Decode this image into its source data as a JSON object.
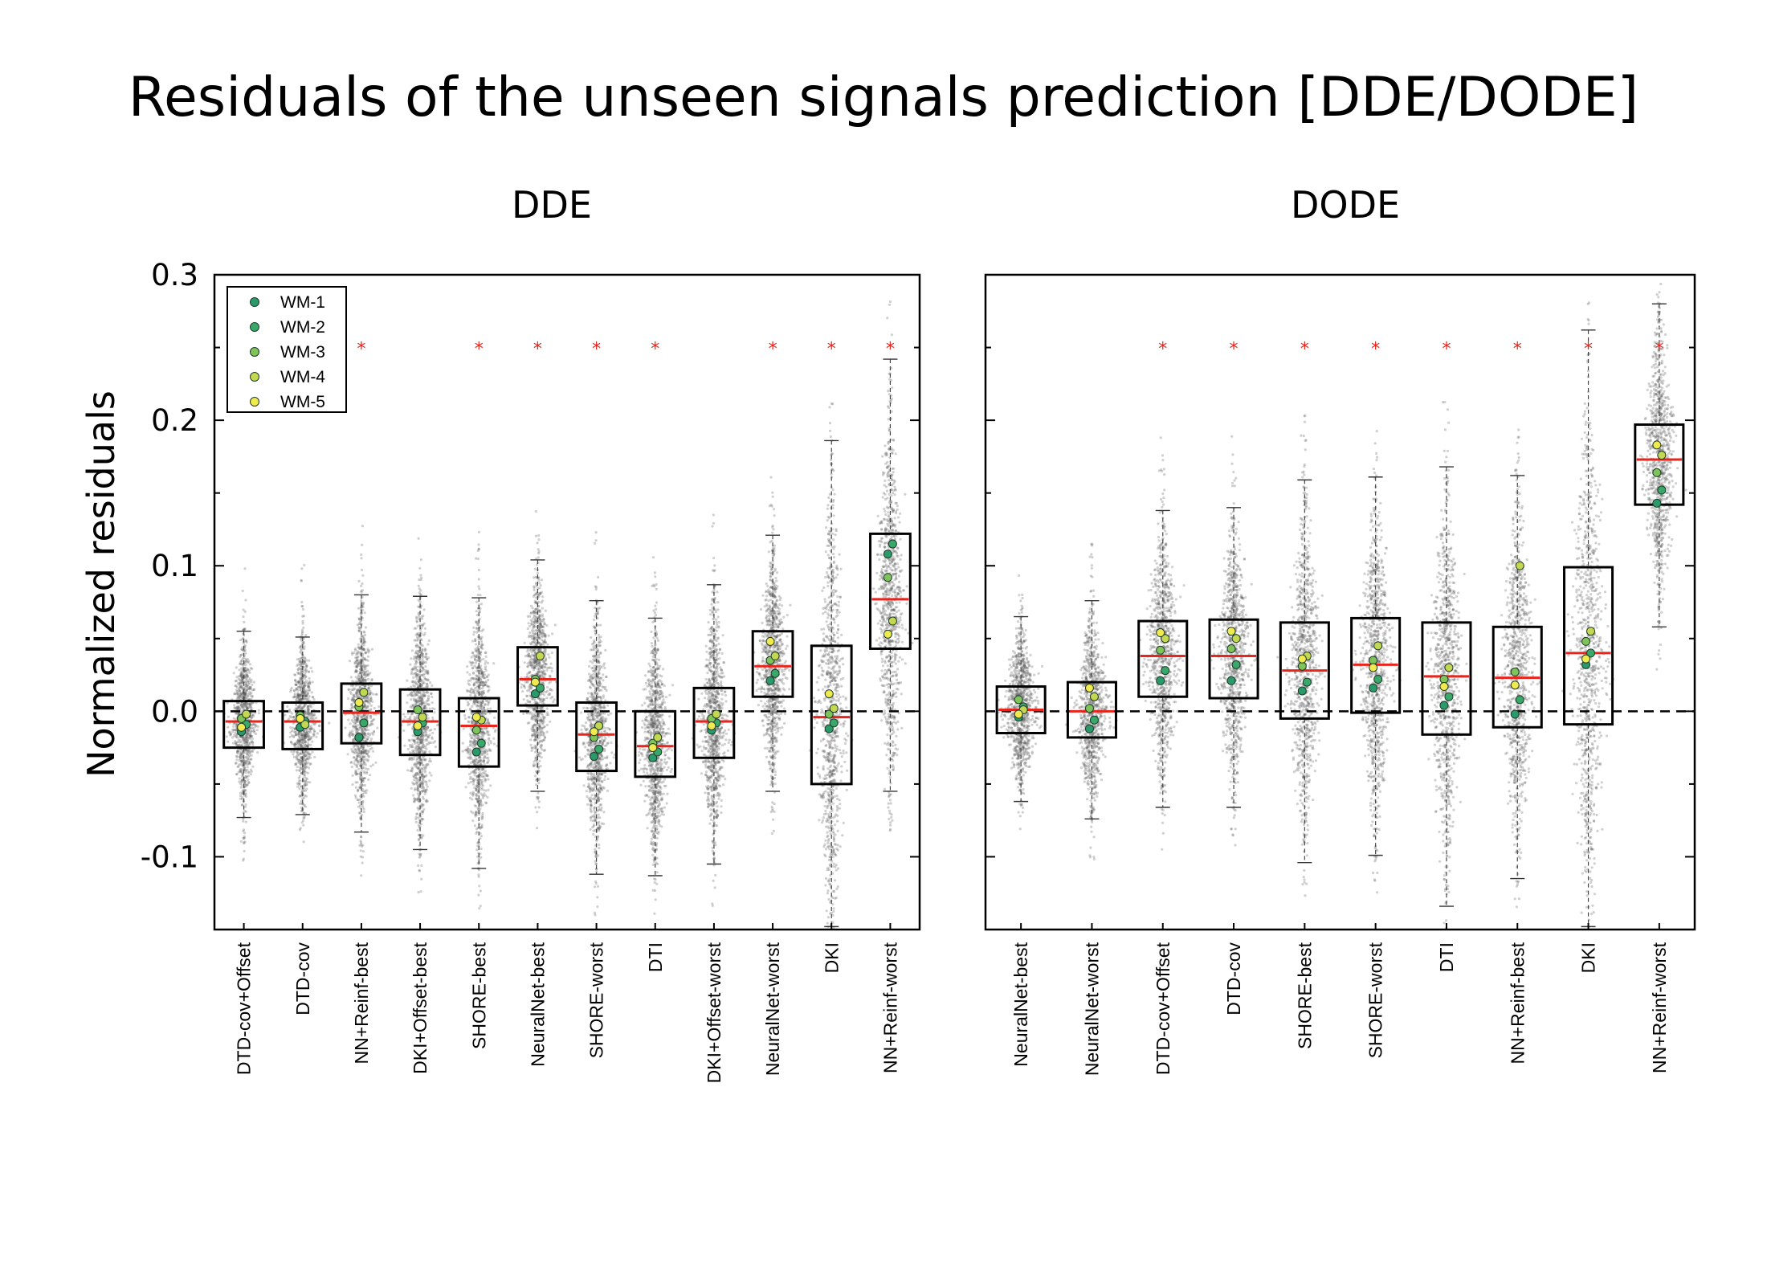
{
  "title": "Residuals of the unseen signals prediction [DDE/DODE]",
  "ylabel": "Normalized residuals",
  "colors": {
    "median": "#e8251c",
    "star": "#e8251c",
    "scatter": "#555555",
    "box": "#000000",
    "wm": [
      "#2a9a6a",
      "#3aa86a",
      "#7ec45a",
      "#c3d850",
      "#f1ea4e"
    ]
  },
  "legend": {
    "location": "top-left",
    "entries": [
      "WM-1",
      "WM-2",
      "WM-3",
      "WM-4",
      "WM-5"
    ]
  },
  "chart_data": [
    {
      "type": "box",
      "title": "DDE",
      "ylim": [
        -0.15,
        0.3
      ],
      "yticks": [
        -0.1,
        0.0,
        0.1,
        0.2,
        0.3
      ],
      "ytick_labels": [
        "-0.1",
        "0.0",
        "0.1",
        "0.2",
        "0.3"
      ],
      "reference_line": 0.0,
      "star_level": 0.25,
      "categories": [
        "DTD-cov+Offset",
        "DTD-cov",
        "NN+Reinf-best",
        "DKI+Offset-best",
        "SHORE-best",
        "NeuralNet-best",
        "SHORE-worst",
        "DTI",
        "DKI+Offset-worst",
        "NeuralNet-worst",
        "DKI",
        "NN+Reinf-worst"
      ],
      "median": [
        -0.007,
        -0.007,
        -0.001,
        -0.007,
        -0.01,
        0.022,
        -0.016,
        -0.024,
        -0.007,
        0.031,
        -0.004,
        0.077
      ],
      "q1": [
        -0.025,
        -0.026,
        -0.022,
        -0.03,
        -0.038,
        0.004,
        -0.041,
        -0.045,
        -0.032,
        0.01,
        -0.05,
        0.043
      ],
      "q3": [
        0.007,
        0.006,
        0.019,
        0.015,
        0.009,
        0.044,
        0.006,
        0.0,
        0.016,
        0.055,
        0.045,
        0.122
      ],
      "whisker_low": [
        -0.073,
        -0.071,
        -0.083,
        -0.095,
        -0.108,
        -0.055,
        -0.112,
        -0.113,
        -0.105,
        -0.055,
        -0.148,
        -0.055
      ],
      "whisker_high": [
        0.055,
        0.051,
        0.08,
        0.079,
        0.078,
        0.104,
        0.076,
        0.064,
        0.087,
        0.121,
        0.186,
        0.242
      ],
      "starred": [
        false,
        false,
        true,
        false,
        true,
        true,
        true,
        true,
        false,
        true,
        true,
        true
      ],
      "wm_points": [
        [
          -0.014,
          -0.009,
          -0.005,
          -0.002,
          -0.011
        ],
        [
          -0.011,
          -0.007,
          -0.003,
          -0.009,
          -0.005
        ],
        [
          -0.018,
          -0.008,
          0.003,
          0.013,
          0.006
        ],
        [
          -0.014,
          -0.008,
          0.001,
          -0.004,
          -0.01
        ],
        [
          -0.028,
          -0.022,
          -0.013,
          -0.006,
          -0.004
        ],
        [
          0.012,
          0.016,
          0.022,
          0.038,
          0.02
        ],
        [
          -0.031,
          -0.026,
          -0.018,
          -0.01,
          -0.014
        ],
        [
          -0.032,
          -0.028,
          -0.022,
          -0.018,
          -0.025
        ],
        [
          -0.013,
          -0.008,
          -0.005,
          -0.002,
          -0.01
        ],
        [
          0.021,
          0.026,
          0.035,
          0.038,
          0.048
        ],
        [
          -0.012,
          -0.008,
          -0.002,
          0.002,
          0.012
        ],
        [
          0.108,
          0.115,
          0.092,
          0.062,
          0.053
        ]
      ]
    },
    {
      "type": "box",
      "title": "DODE",
      "ylim": [
        -0.15,
        0.3
      ],
      "yticks": [
        -0.1,
        0.0,
        0.1,
        0.2,
        0.3
      ],
      "reference_line": 0.0,
      "star_level": 0.25,
      "categories": [
        "NeuralNet-best",
        "NeuralNet-worst",
        "DTD-cov+Offset",
        "DTD-cov",
        "SHORE-best",
        "SHORE-worst",
        "DTI",
        "NN+Reinf-best",
        "DKI",
        "NN+Reinf-worst"
      ],
      "median": [
        0.001,
        0.0,
        0.038,
        0.038,
        0.028,
        0.032,
        0.024,
        0.023,
        0.04,
        0.173
      ],
      "q1": [
        -0.015,
        -0.018,
        0.01,
        0.009,
        -0.005,
        -0.001,
        -0.016,
        -0.011,
        -0.009,
        0.142
      ],
      "q3": [
        0.017,
        0.02,
        0.062,
        0.063,
        0.061,
        0.064,
        0.061,
        0.058,
        0.099,
        0.197
      ],
      "whisker_low": [
        -0.062,
        -0.074,
        -0.066,
        -0.066,
        -0.104,
        -0.099,
        -0.134,
        -0.115,
        -0.148,
        0.058
      ],
      "whisker_high": [
        0.065,
        0.076,
        0.138,
        0.14,
        0.159,
        0.161,
        0.168,
        0.162,
        0.262,
        0.28
      ],
      "starred": [
        false,
        false,
        true,
        true,
        true,
        true,
        true,
        true,
        true,
        true
      ],
      "wm_points": [
        [
          -0.004,
          0.003,
          0.008,
          0.001,
          -0.002
        ],
        [
          -0.012,
          -0.006,
          0.002,
          0.01,
          0.016
        ],
        [
          0.021,
          0.028,
          0.042,
          0.05,
          0.054
        ],
        [
          0.021,
          0.032,
          0.043,
          0.05,
          0.055
        ],
        [
          0.014,
          0.02,
          0.031,
          0.038,
          0.036
        ],
        [
          0.016,
          0.022,
          0.035,
          0.045,
          0.03
        ],
        [
          0.004,
          0.01,
          0.022,
          0.03,
          0.017
        ],
        [
          -0.002,
          0.008,
          0.027,
          0.1,
          0.018
        ],
        [
          0.032,
          0.04,
          0.048,
          0.055,
          0.036
        ],
        [
          0.143,
          0.152,
          0.164,
          0.176,
          0.183
        ]
      ]
    }
  ]
}
